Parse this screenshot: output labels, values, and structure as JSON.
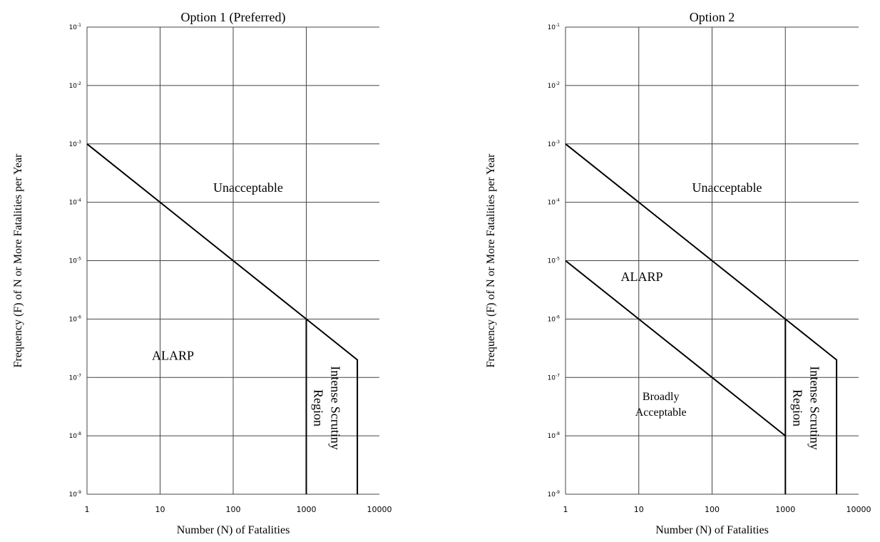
{
  "chart_data": [
    {
      "type": "line",
      "title": "Option 1 (Preferred)",
      "xlabel": "Number (N) of Fatalities",
      "ylabel": "Frequency (F) of N or More Fatalities per Year",
      "x_scale": "log",
      "y_scale": "log",
      "xlim": [
        1,
        10000
      ],
      "ylim": [
        1e-09,
        0.1
      ],
      "x_ticks": [
        1,
        10,
        100,
        1000,
        10000
      ],
      "x_tick_labels": [
        "1",
        "10",
        "100",
        "1000",
        "10000"
      ],
      "y_ticks": [
        1e-09,
        1e-08,
        1e-07,
        1e-06,
        1e-05,
        0.0001,
        0.001,
        0.01,
        0.1
      ],
      "y_tick_labels": [
        {
          "base": "10",
          "exp": "-9"
        },
        {
          "base": "10",
          "exp": "-8"
        },
        {
          "base": "10",
          "exp": "-7"
        },
        {
          "base": "10",
          "exp": "-6"
        },
        {
          "base": "10",
          "exp": "-5"
        },
        {
          "base": "10",
          "exp": "-4"
        },
        {
          "base": "10",
          "exp": "-3"
        },
        {
          "base": "10",
          "exp": "-2"
        },
        {
          "base": "10",
          "exp": "-1"
        }
      ],
      "grid": true,
      "series": [
        {
          "points": [
            [
              1,
              0.001
            ],
            [
              1000,
              1e-06
            ],
            [
              5000,
              2e-07
            ],
            [
              5000,
              1e-09
            ]
          ]
        },
        {
          "points": [
            [
              1000,
              1e-06
            ],
            [
              1000,
              1e-09
            ]
          ]
        }
      ],
      "regions": [
        {
          "label": "Unacceptable",
          "x": 160,
          "y": 0.00015,
          "lines": [
            "Unacceptable"
          ]
        },
        {
          "label": "ALARP",
          "x": 15,
          "y": 2e-07,
          "lines": [
            "ALARP"
          ]
        },
        {
          "label": "Intense Scrutiny Region",
          "x": 2200,
          "y": 3e-08,
          "lines": [
            "Intense Scrutiny",
            "Region"
          ],
          "rotate": 90
        }
      ]
    },
    {
      "type": "line",
      "title": "Option 2",
      "xlabel": "Number (N) of Fatalities",
      "ylabel": "Frequency (F) of N or More Fatalities per Year",
      "x_scale": "log",
      "y_scale": "log",
      "xlim": [
        1,
        10000
      ],
      "ylim": [
        1e-09,
        0.1
      ],
      "x_ticks": [
        1,
        10,
        100,
        1000,
        10000
      ],
      "x_tick_labels": [
        "1",
        "10",
        "100",
        "1000",
        "10000"
      ],
      "y_ticks": [
        1e-09,
        1e-08,
        1e-07,
        1e-06,
        1e-05,
        0.0001,
        0.001,
        0.01,
        0.1
      ],
      "y_tick_labels": [
        {
          "base": "10",
          "exp": "-9"
        },
        {
          "base": "10",
          "exp": "-8"
        },
        {
          "base": "10",
          "exp": "-7"
        },
        {
          "base": "10",
          "exp": "-6"
        },
        {
          "base": "10",
          "exp": "-5"
        },
        {
          "base": "10",
          "exp": "-4"
        },
        {
          "base": "10",
          "exp": "-3"
        },
        {
          "base": "10",
          "exp": "-2"
        },
        {
          "base": "10",
          "exp": "-1"
        }
      ],
      "grid": true,
      "series": [
        {
          "points": [
            [
              1,
              0.001
            ],
            [
              1000,
              1e-06
            ],
            [
              5000,
              2e-07
            ],
            [
              5000,
              1e-09
            ]
          ]
        },
        {
          "points": [
            [
              1,
              1e-05
            ],
            [
              1000,
              1e-08
            ]
          ]
        },
        {
          "points": [
            [
              1000,
              1e-06
            ],
            [
              1000,
              1e-09
            ]
          ]
        }
      ],
      "regions": [
        {
          "label": "Unacceptable",
          "x": 160,
          "y": 0.00015,
          "lines": [
            "Unacceptable"
          ]
        },
        {
          "label": "ALARP",
          "x": 11,
          "y": 4.5e-06,
          "lines": [
            "ALARP"
          ]
        },
        {
          "label": "Broadly Acceptable",
          "x": 20,
          "y": 3e-08,
          "lines": [
            "Broadly",
            "Acceptable"
          ],
          "small": true
        },
        {
          "label": "Intense Scrutiny Region",
          "x": 2200,
          "y": 3e-08,
          "lines": [
            "Intense Scrutiny",
            "Region"
          ],
          "rotate": 90
        }
      ]
    }
  ]
}
